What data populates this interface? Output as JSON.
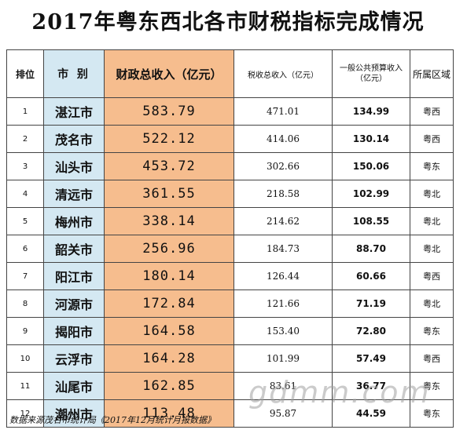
{
  "title": "2017年粤东西北各市财税指标完成情况",
  "headers": {
    "rank": "排位",
    "city": "市 别",
    "revenue": "财政总收入（亿元）",
    "tax": "税收总收入（亿元）",
    "budget": "一般公共预算收入（亿元）",
    "region": "所属区域"
  },
  "rows": [
    {
      "rank": "1",
      "city": "湛江市",
      "revenue": "583.79",
      "tax": "471.01",
      "budget": "134.99",
      "region": "粤西"
    },
    {
      "rank": "2",
      "city": "茂名市",
      "revenue": "522.12",
      "tax": "414.06",
      "budget": "130.14",
      "region": "粤西"
    },
    {
      "rank": "3",
      "city": "汕头市",
      "revenue": "453.72",
      "tax": "302.66",
      "budget": "150.06",
      "region": "粤东"
    },
    {
      "rank": "4",
      "city": "清远市",
      "revenue": "361.55",
      "tax": "218.58",
      "budget": "102.99",
      "region": "粤北"
    },
    {
      "rank": "5",
      "city": "梅州市",
      "revenue": "338.14",
      "tax": "214.62",
      "budget": "108.55",
      "region": "粤北"
    },
    {
      "rank": "6",
      "city": "韶关市",
      "revenue": "256.96",
      "tax": "184.73",
      "budget": "88.70",
      "region": "粤北"
    },
    {
      "rank": "7",
      "city": "阳江市",
      "revenue": "180.14",
      "tax": "126.44",
      "budget": "60.66",
      "region": "粤西"
    },
    {
      "rank": "8",
      "city": "河源市",
      "revenue": "172.84",
      "tax": "121.66",
      "budget": "71.19",
      "region": "粤北"
    },
    {
      "rank": "9",
      "city": "揭阳市",
      "revenue": "164.58",
      "tax": "153.40",
      "budget": "72.80",
      "region": "粤东"
    },
    {
      "rank": "10",
      "city": "云浮市",
      "revenue": "164.28",
      "tax": "101.99",
      "budget": "57.49",
      "region": "粤西"
    },
    {
      "rank": "11",
      "city": "汕尾市",
      "revenue": "162.85",
      "tax": "83.61",
      "budget": "36.77",
      "region": "粤东"
    },
    {
      "rank": "12",
      "city": "潮州市",
      "revenue": "113.48",
      "tax": "95.87",
      "budget": "44.59",
      "region": "粤东"
    }
  ],
  "source": "数据来源茂名市统计局《2017年12月统计月报数据》",
  "watermark": "gdmm.com",
  "colors": {
    "city_bg": "#d4e8f2",
    "revenue_bg": "#f6bd8e"
  }
}
